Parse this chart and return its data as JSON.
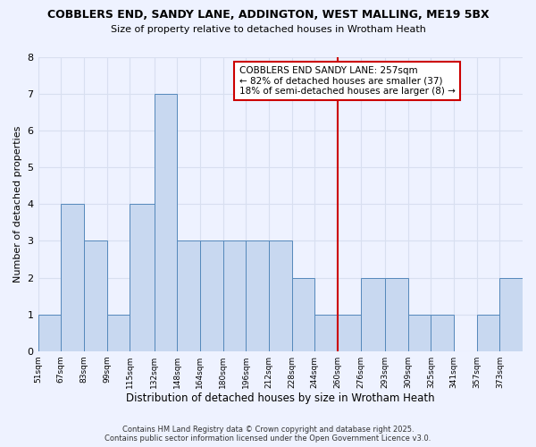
{
  "title1": "COBBLERS END, SANDY LANE, ADDINGTON, WEST MALLING, ME19 5BX",
  "title2": "Size of property relative to detached houses in Wrotham Heath",
  "xlabel": "Distribution of detached houses by size in Wrotham Heath",
  "ylabel": "Number of detached properties",
  "bin_labels": [
    "51sqm",
    "67sqm",
    "83sqm",
    "99sqm",
    "115sqm",
    "132sqm",
    "148sqm",
    "164sqm",
    "180sqm",
    "196sqm",
    "212sqm",
    "228sqm",
    "244sqm",
    "260sqm",
    "276sqm",
    "293sqm",
    "309sqm",
    "325sqm",
    "341sqm",
    "357sqm",
    "373sqm"
  ],
  "bin_edges": [
    51,
    67,
    83,
    99,
    115,
    132,
    148,
    164,
    180,
    196,
    212,
    228,
    244,
    260,
    276,
    293,
    309,
    325,
    341,
    357,
    373,
    389
  ],
  "counts": [
    1,
    4,
    3,
    1,
    4,
    7,
    3,
    3,
    3,
    3,
    3,
    2,
    1,
    1,
    2,
    2,
    1,
    1,
    0,
    1,
    2
  ],
  "bar_color": "#c8d8f0",
  "bar_edge_color": "#5588bb",
  "property_line_x": 260,
  "annotation_line1": "COBBLERS END SANDY LANE: 257sqm",
  "annotation_line2": "← 82% of detached houses are smaller (37)",
  "annotation_line3": "18% of semi-detached houses are larger (8) →",
  "annotation_box_color": "#ffffff",
  "annotation_border_color": "#cc0000",
  "red_line_color": "#cc0000",
  "ylim": [
    0,
    8
  ],
  "yticks": [
    0,
    1,
    2,
    3,
    4,
    5,
    6,
    7,
    8
  ],
  "background_color": "#eef2ff",
  "grid_color": "#d8dff0",
  "footer1": "Contains HM Land Registry data © Crown copyright and database right 2025.",
  "footer2": "Contains public sector information licensed under the Open Government Licence v3.0."
}
